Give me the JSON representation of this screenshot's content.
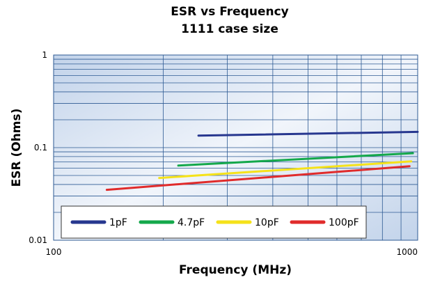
{
  "chart_data": {
    "type": "line",
    "title": "ESR vs Frequency",
    "subtitle": "1111 case size",
    "xlabel": "Frequency (MHz)",
    "ylabel": "ESR (Ohms)",
    "x_scale": "log",
    "y_scale": "log",
    "xlim": [
      100,
      1000
    ],
    "ylim": [
      0.01,
      1
    ],
    "x_tick_labels": [
      "100",
      "1000"
    ],
    "y_tick_labels": [
      "1",
      "0.1",
      "0.01"
    ],
    "grid": true,
    "legend_position": "bottom-left",
    "series": [
      {
        "name": "1pF",
        "color": "#27378f",
        "x": [
          250,
          1000
        ],
        "y": [
          0.135,
          0.148
        ]
      },
      {
        "name": "4.7pF",
        "color": "#14a84b",
        "x": [
          220,
          970
        ],
        "y": [
          0.064,
          0.087
        ]
      },
      {
        "name": "10pF",
        "color": "#f5e21a",
        "x": [
          195,
          960
        ],
        "y": [
          0.047,
          0.071
        ]
      },
      {
        "name": "100pF",
        "color": "#e02b2b",
        "x": [
          140,
          950
        ],
        "y": [
          0.035,
          0.063
        ]
      }
    ]
  }
}
